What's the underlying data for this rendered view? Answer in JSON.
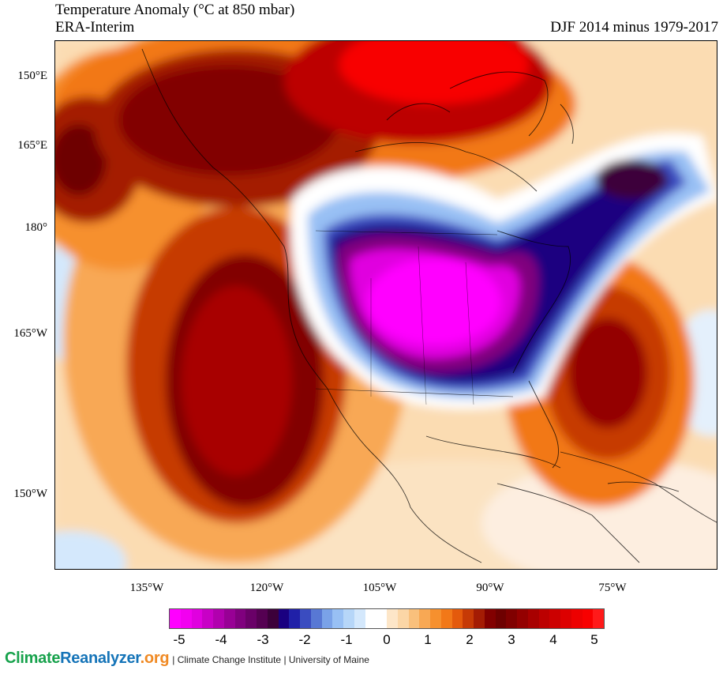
{
  "header": {
    "title": "Temperature Anomaly (°C at 850 mbar)",
    "dataset": "ERA-Interim",
    "period": "DJF 2014 minus 1979-2017"
  },
  "map": {
    "lat_labels": [
      "150°E",
      "165°E",
      "180°",
      "165°W",
      "150°W"
    ],
    "lon_labels": [
      "135°W",
      "120°W",
      "105°W",
      "90°W",
      "75°W"
    ]
  },
  "colorbar": {
    "tick_labels": [
      "-5",
      "-4",
      "-3",
      "-2",
      "-1",
      "0",
      "1",
      "2",
      "3",
      "4",
      "5"
    ],
    "colors": [
      "#ff00ff",
      "#f200f0",
      "#e000df",
      "#c800c6",
      "#b100ae",
      "#980095",
      "#80007e",
      "#6a0068",
      "#550052",
      "#3c003a",
      "#1a0080",
      "#2020a8",
      "#3a4cc0",
      "#5878d4",
      "#7aa2e8",
      "#98c0f4",
      "#b6d6f8",
      "#d4e8fc",
      "#ffffff",
      "#ffffff",
      "#fde6c8",
      "#fbd6a6",
      "#f9c07c",
      "#f8a854",
      "#f6902e",
      "#f27818",
      "#e45a0c",
      "#c63a06",
      "#a41c04",
      "#820000",
      "#6e0000",
      "#800000",
      "#940000",
      "#a80000",
      "#bc0000",
      "#cc0000",
      "#dd0000",
      "#ed0000",
      "#f80000",
      "#ff1a1a"
    ]
  },
  "footer": {
    "brand_part1": "Climate",
    "brand_part2": "Reanalyzer",
    "brand_part3": ".org",
    "credits": "| Climate Change Institute | University of Maine"
  }
}
